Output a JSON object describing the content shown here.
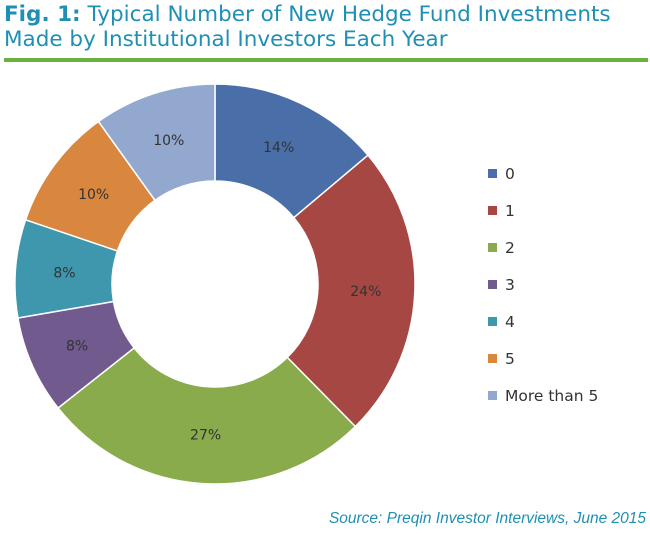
{
  "title": {
    "fig_label": "Fig. 1:",
    "text": "Typical Number of New Hedge Fund Investments Made by Institutional Investors Each Year"
  },
  "source": "Source: Preqin Investor Interviews, June 2015",
  "chart_data": {
    "type": "pie",
    "style": "donut",
    "title": "Typical Number of New Hedge Fund Investments Made by Institutional Investors Each Year",
    "legend_placement": "right",
    "slices": [
      {
        "label": "0",
        "value": 14,
        "display": "14%",
        "color": "#4a6fa8"
      },
      {
        "label": "1",
        "value": 24,
        "display": "24%",
        "color": "#a64744"
      },
      {
        "label": "2",
        "value": 27,
        "display": "27%",
        "color": "#8aab4c"
      },
      {
        "label": "3",
        "value": 8,
        "display": "8%",
        "color": "#705a8e"
      },
      {
        "label": "4",
        "value": 8,
        "display": "8%",
        "color": "#3f97ad"
      },
      {
        "label": "5",
        "value": 10,
        "display": "10%",
        "color": "#d9873e"
      },
      {
        "label": "More than 5",
        "value": 10,
        "display": "10%",
        "color": "#93a8cf"
      }
    ]
  }
}
